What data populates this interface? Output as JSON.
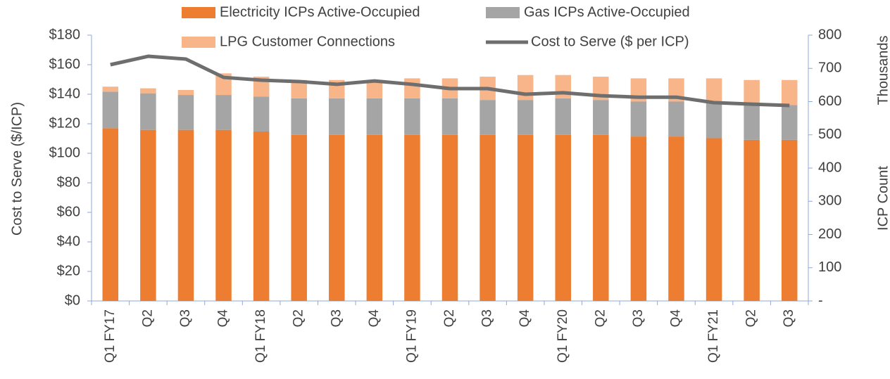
{
  "chart_data": {
    "type": "bar",
    "stacked": true,
    "categories": [
      "Q1 FY17",
      "Q2",
      "Q3",
      "Q4",
      "Q1 FY18",
      "Q2",
      "Q3",
      "Q4",
      "Q1 FY19",
      "Q2",
      "Q3",
      "Q4",
      "Q1 FY20",
      "Q2",
      "Q3",
      "Q4",
      "Q1 FY21",
      "Q2",
      "Q3"
    ],
    "series": [
      {
        "name": "Electricity ICPs Active-Occupied",
        "type": "bar",
        "axis": "y2",
        "color": "#ED7D31",
        "values": [
          520,
          515,
          515,
          515,
          510,
          500,
          500,
          500,
          500,
          500,
          500,
          500,
          500,
          500,
          495,
          495,
          490,
          485,
          485
        ]
      },
      {
        "name": "Gas ICPs Active-Occupied",
        "type": "bar",
        "axis": "y2",
        "color": "#A5A5A5",
        "values": [
          110,
          110,
          105,
          105,
          105,
          110,
          110,
          110,
          110,
          110,
          105,
          105,
          110,
          105,
          105,
          105,
          105,
          105,
          105
        ]
      },
      {
        "name": "LPG Customer Connections",
        "type": "bar",
        "axis": "y2",
        "color": "#F8B58A",
        "values": [
          15,
          15,
          15,
          65,
          60,
          55,
          55,
          55,
          60,
          60,
          70,
          75,
          70,
          70,
          70,
          70,
          75,
          75,
          75
        ]
      },
      {
        "name": "Cost to Serve ($ per ICP)",
        "type": "line",
        "axis": "y",
        "color": "#6E6E6E",
        "values": [
          160,
          165.7,
          163.8,
          151.4,
          149.5,
          148.6,
          146.7,
          149,
          146.7,
          143.8,
          143.8,
          140,
          141,
          139,
          138,
          138,
          134.3,
          133.3,
          132.4
        ]
      }
    ],
    "y_label": "Cost to Serve ($/ICP)",
    "y2_label": "ICP Count",
    "y2_unit_label": "Thousands",
    "ylim": [
      0,
      180
    ],
    "yticks": [
      {
        "value": 0,
        "label": "$0"
      },
      {
        "value": 20,
        "label": "$20"
      },
      {
        "value": 40,
        "label": "$40"
      },
      {
        "value": 60,
        "label": "$60"
      },
      {
        "value": 80,
        "label": "$80"
      },
      {
        "value": 100,
        "label": "$100"
      },
      {
        "value": 120,
        "label": "$120"
      },
      {
        "value": 140,
        "label": "$140"
      },
      {
        "value": 160,
        "label": "$160"
      },
      {
        "value": 180,
        "label": "$180"
      }
    ],
    "y2lim": [
      0,
      800
    ],
    "y2ticks": [
      {
        "value": 0,
        "label": "-"
      },
      100,
      200,
      300,
      400,
      500,
      600,
      700,
      800
    ],
    "legend": "top",
    "grid": false
  }
}
